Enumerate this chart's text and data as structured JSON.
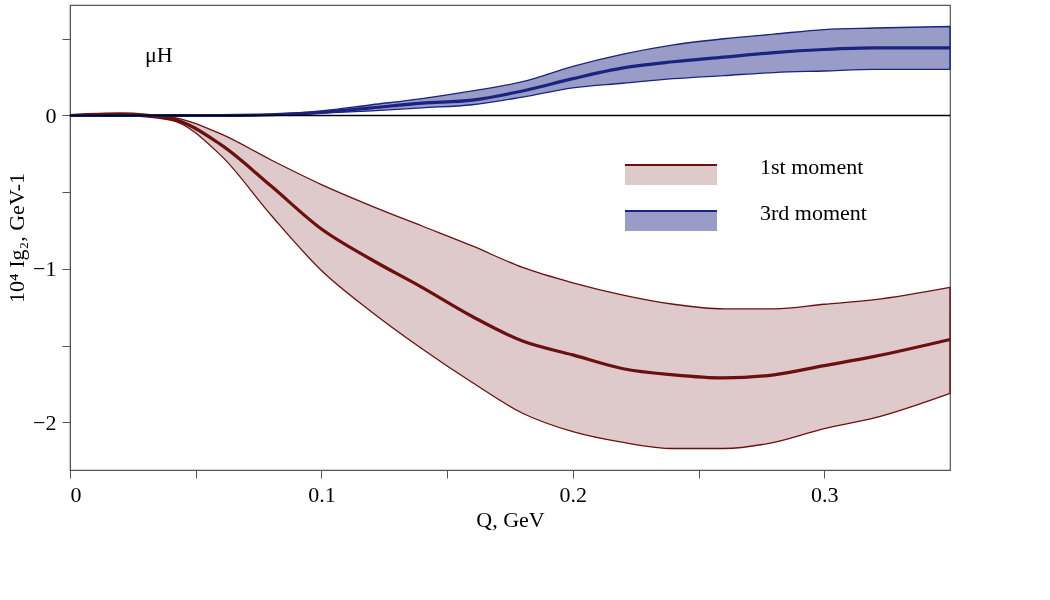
{
  "chart_data": {
    "type": "line",
    "xlabel": "Q, GeV",
    "ylabel": "10⁴ Ig₂, GeV-1",
    "x": [
      0,
      0.02,
      0.04,
      0.06,
      0.08,
      0.1,
      0.12,
      0.14,
      0.16,
      0.18,
      0.2,
      0.22,
      0.24,
      0.26,
      0.28,
      0.3,
      0.32,
      0.35
    ],
    "series": [
      {
        "name": "1st moment",
        "color": "#6b0f0f",
        "values": [
          0,
          0.01,
          -0.02,
          -0.19,
          -0.46,
          -0.74,
          -0.94,
          -1.12,
          -1.31,
          -1.47,
          -1.56,
          -1.65,
          -1.69,
          -1.71,
          -1.69,
          -1.63,
          -1.57,
          -1.46
        ],
        "lower": [
          0,
          0,
          -0.03,
          -0.26,
          -0.65,
          -1.01,
          -1.28,
          -1.52,
          -1.74,
          -1.94,
          -2.06,
          -2.13,
          -2.17,
          -2.17,
          -2.13,
          -2.04,
          -1.97,
          -1.81
        ],
        "upper": [
          0,
          0.01,
          -0.01,
          -0.12,
          -0.29,
          -0.45,
          -0.59,
          -0.72,
          -0.85,
          -0.99,
          -1.09,
          -1.17,
          -1.23,
          -1.26,
          -1.26,
          -1.23,
          -1.2,
          -1.12
        ]
      },
      {
        "name": "3rd moment",
        "color": "#1a2380",
        "values": [
          0,
          0,
          0,
          0,
          0.005,
          0.02,
          0.05,
          0.08,
          0.1,
          0.16,
          0.24,
          0.31,
          0.35,
          0.38,
          0.41,
          0.43,
          0.44,
          0.44
        ],
        "lower": [
          0,
          0,
          0,
          0,
          0.003,
          0.015,
          0.03,
          0.05,
          0.07,
          0.12,
          0.18,
          0.21,
          0.24,
          0.26,
          0.28,
          0.29,
          0.3,
          0.3
        ],
        "upper": [
          0,
          0,
          0,
          0,
          0.008,
          0.03,
          0.07,
          0.11,
          0.16,
          0.22,
          0.32,
          0.4,
          0.46,
          0.5,
          0.53,
          0.56,
          0.57,
          0.58
        ]
      }
    ],
    "xlim": [
      0,
      0.35
    ],
    "ylim": [
      -2.31,
      0.72
    ],
    "xticks": [
      0,
      {
        "value": 0.05,
        "label": null
      },
      0.1,
      {
        "value": 0.15,
        "label": null
      },
      0.2,
      {
        "value": 0.25,
        "label": null
      },
      0.3
    ],
    "yticks": [
      {
        "value": 0.5,
        "label": null
      },
      0,
      {
        "value": -0.5,
        "label": null
      },
      -1,
      {
        "value": -1.5,
        "label": null
      },
      -2
    ],
    "ref_lines": [
      {
        "axis": "y",
        "value": 0,
        "color": "#000000"
      }
    ],
    "annotations": [
      "μH"
    ],
    "legend": "right",
    "grid": false
  }
}
